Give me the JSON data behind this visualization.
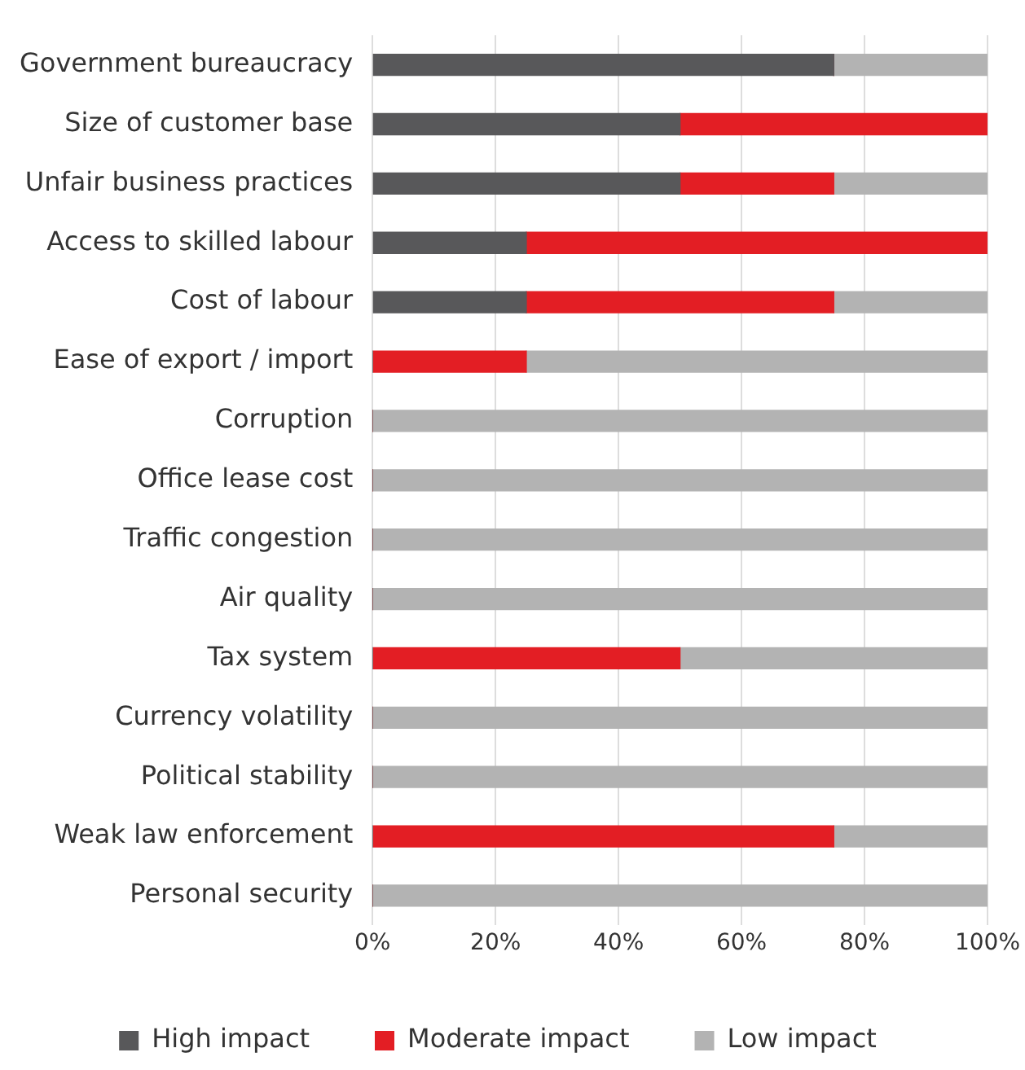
{
  "chart_data": {
    "type": "bar",
    "orientation": "horizontal",
    "stacked": true,
    "categories": [
      "Government bureaucracy",
      "Size of customer base",
      "Unfair business practices",
      "Access to skilled labour",
      "Cost of labour",
      "Ease of export / import",
      "Corruption",
      "Office lease cost",
      "Traffic congestion",
      "Air quality",
      "Tax system",
      "Currency volatility",
      "Political stability",
      "Weak law enforcement",
      "Personal security"
    ],
    "series": [
      {
        "name": "High impact",
        "color": "#58585a",
        "values": [
          75,
          50,
          50,
          25,
          25,
          0,
          0,
          0,
          0,
          0,
          0,
          0,
          0,
          0,
          0
        ]
      },
      {
        "name": "Moderate impact",
        "color": "#e31e24",
        "values": [
          0,
          50,
          25,
          75,
          50,
          25,
          0,
          0,
          0,
          0,
          50,
          0,
          0,
          75,
          0
        ]
      },
      {
        "name": "Low impact",
        "color": "#b3b3b3",
        "values": [
          25,
          0,
          25,
          0,
          25,
          75,
          100,
          100,
          100,
          100,
          50,
          100,
          100,
          25,
          100
        ]
      }
    ],
    "xlim": [
      0,
      100
    ],
    "xticks": [
      {
        "value": 0,
        "label": "0%"
      },
      {
        "value": 20,
        "label": "20%"
      },
      {
        "value": 40,
        "label": "40%"
      },
      {
        "value": 60,
        "label": "60%"
      },
      {
        "value": 80,
        "label": "80%"
      },
      {
        "value": 100,
        "label": "100%"
      }
    ],
    "grid": "x",
    "legend": "bottom"
  }
}
